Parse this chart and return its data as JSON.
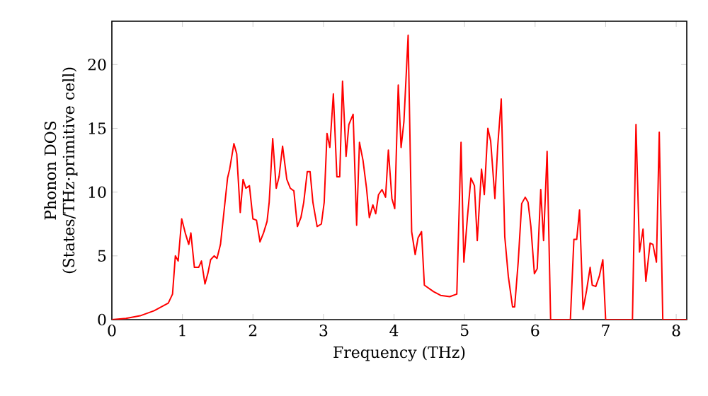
{
  "chart_data": {
    "type": "line",
    "xlabel": "Frequency (THz)",
    "ylabel": "Phonon DOS (States/THz·primitive cell)",
    "xlim": [
      0,
      8.15
    ],
    "ylim": [
      0,
      23.4
    ],
    "xticks": [
      0,
      1,
      2,
      3,
      4,
      5,
      6,
      7,
      8
    ],
    "yticks": [
      0,
      5,
      10,
      15,
      20
    ],
    "series": [
      {
        "color": "#ff0000",
        "x": [
          0,
          0.2,
          0.4,
          0.6,
          0.8,
          0.86,
          0.9,
          0.94,
          0.99,
          1.04,
          1.09,
          1.12,
          1.17,
          1.23,
          1.27,
          1.32,
          1.36,
          1.4,
          1.45,
          1.49,
          1.54,
          1.64,
          1.67,
          1.73,
          1.77,
          1.82,
          1.86,
          1.9,
          1.95,
          2.0,
          2.05,
          2.1,
          2.15,
          2.2,
          2.23,
          2.28,
          2.33,
          2.37,
          2.42,
          2.48,
          2.53,
          2.58,
          2.63,
          2.68,
          2.72,
          2.77,
          2.81,
          2.85,
          2.91,
          2.97,
          3.01,
          3.05,
          3.09,
          3.14,
          3.19,
          3.23,
          3.27,
          3.32,
          3.36,
          3.42,
          3.47,
          3.51,
          3.56,
          3.61,
          3.65,
          3.7,
          3.74,
          3.78,
          3.83,
          3.88,
          3.92,
          3.97,
          4.01,
          4.06,
          4.1,
          4.14,
          4.2,
          4.25,
          4.3,
          4.34,
          4.39,
          4.43,
          4.56,
          4.66,
          4.79,
          4.89,
          4.95,
          4.99,
          5.04,
          5.09,
          5.14,
          5.18,
          5.24,
          5.28,
          5.33,
          5.37,
          5.43,
          5.47,
          5.52,
          5.57,
          5.62,
          5.68,
          5.71,
          5.76,
          5.81,
          5.86,
          5.9,
          5.94,
          5.99,
          6.03,
          6.08,
          6.12,
          6.17,
          6.22,
          6.5,
          6.55,
          6.59,
          6.63,
          6.68,
          6.73,
          6.78,
          6.81,
          6.86,
          6.91,
          6.96,
          7.0,
          7.38,
          7.43,
          7.48,
          7.53,
          7.57,
          7.63,
          7.67,
          7.72,
          7.76,
          7.81,
          8.15
        ],
        "values": [
          0,
          0.1,
          0.3,
          0.7,
          1.3,
          2.0,
          5.0,
          4.6,
          7.9,
          6.8,
          5.9,
          6.8,
          4.1,
          4.1,
          4.6,
          2.8,
          3.6,
          4.7,
          5.0,
          4.8,
          5.9,
          11.1,
          11.8,
          13.8,
          13.0,
          8.4,
          11.0,
          10.3,
          10.5,
          7.9,
          7.8,
          6.1,
          6.8,
          7.7,
          9.2,
          14.2,
          10.3,
          11.2,
          13.6,
          11.0,
          10.3,
          10.1,
          7.3,
          8.0,
          9.2,
          11.6,
          11.6,
          9.2,
          7.3,
          7.5,
          9.2,
          14.6,
          13.5,
          17.7,
          11.2,
          11.2,
          18.7,
          12.8,
          15.3,
          16.1,
          7.4,
          13.9,
          12.5,
          10.3,
          8.0,
          9.0,
          8.3,
          9.8,
          10.2,
          9.6,
          13.3,
          9.5,
          8.7,
          18.4,
          13.5,
          15.5,
          22.3,
          6.9,
          5.1,
          6.4,
          6.9,
          2.7,
          2.2,
          1.9,
          1.8,
          2.0,
          13.9,
          4.5,
          8.0,
          11.1,
          10.5,
          6.2,
          11.8,
          9.8,
          15.0,
          14.0,
          9.5,
          13.6,
          17.3,
          6.5,
          3.4,
          1.0,
          1.0,
          4.5,
          9.1,
          9.6,
          9.2,
          7.3,
          3.6,
          4.0,
          10.2,
          6.2,
          13.2,
          0,
          0,
          6.3,
          6.3,
          8.6,
          0.8,
          2.3,
          4.1,
          2.7,
          2.6,
          3.4,
          4.7,
          0,
          0,
          15.3,
          5.3,
          7.1,
          3.0,
          6.0,
          5.9,
          4.5,
          14.7,
          0,
          0
        ]
      }
    ]
  }
}
